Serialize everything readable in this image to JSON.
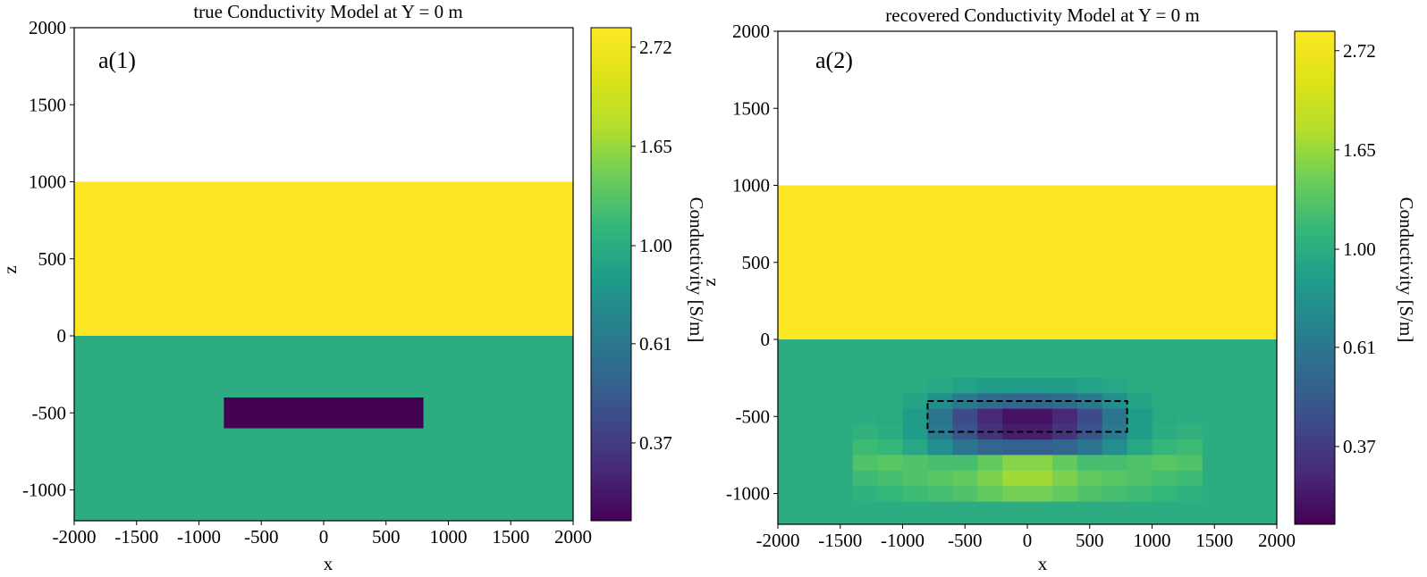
{
  "chart_data": [
    {
      "type": "heatmap",
      "title": "true Conductivity Model at Y = 0 m",
      "xlabel": "x",
      "ylabel": "z",
      "panel_label": "a(1)",
      "xlim": [
        -2000,
        2000
      ],
      "ylim": [
        -1200,
        2000
      ],
      "xticks": [
        "-2000",
        "-1500",
        "-1000",
        "-500",
        "0",
        "500",
        "1000",
        "1500",
        "2000"
      ],
      "yticks": [
        "-1000",
        "-500",
        "0",
        "500",
        "1000",
        "1500",
        "2000"
      ],
      "regions": [
        {
          "name": "air",
          "x": [
            -2000,
            2000
          ],
          "z": [
            1000,
            2000
          ],
          "value": null
        },
        {
          "name": "upper layer",
          "x": [
            -2000,
            2000
          ],
          "z": [
            0,
            1000
          ],
          "value": 3.0
        },
        {
          "name": "background",
          "x": [
            -2000,
            2000
          ],
          "z": [
            -1200,
            0
          ],
          "value": 1.0
        },
        {
          "name": "block",
          "x": [
            -800,
            800
          ],
          "z": [
            -600,
            -400
          ],
          "value": 0.25
        }
      ],
      "colorbar": {
        "label": "Conductivity [S/m]",
        "scale": "log",
        "range": [
          0.25,
          3.0
        ],
        "ticks": [
          "0.37",
          "0.61",
          "1.00",
          "1.65",
          "2.72"
        ]
      }
    },
    {
      "type": "heatmap",
      "title": "recovered Conductivity Model at Y = 0 m",
      "xlabel": "x",
      "ylabel": "z",
      "panel_label": "a(2)",
      "xlim": [
        -2000,
        2000
      ],
      "ylim": [
        -1200,
        2000
      ],
      "xticks": [
        "-2000",
        "-1500",
        "-1000",
        "-500",
        "0",
        "500",
        "1000",
        "1500",
        "2000"
      ],
      "yticks": [
        "-1000",
        "-500",
        "0",
        "500",
        "1000",
        "1500",
        "2000"
      ],
      "regions": [
        {
          "name": "air",
          "x": [
            -2000,
            2000
          ],
          "z": [
            1000,
            2000
          ],
          "value": null
        },
        {
          "name": "upper layer",
          "x": [
            -2000,
            2000
          ],
          "z": [
            0,
            1000
          ],
          "value": 3.0
        },
        {
          "name": "background",
          "x": [
            -2000,
            2000
          ],
          "z": [
            -1200,
            0
          ],
          "value": 1.0
        }
      ],
      "recovered_cells": {
        "x_centers": [
          -1300,
          -1100,
          -900,
          -700,
          -500,
          -300,
          -100,
          100,
          300,
          500,
          700,
          900,
          1100,
          1300
        ],
        "z_centers": [
          -300,
          -400,
          -500,
          -600,
          -700,
          -800,
          -900,
          -1000
        ],
        "values": [
          [
            1.0,
            1.0,
            1.0,
            0.95,
            0.9,
            0.85,
            0.85,
            0.85,
            0.85,
            0.9,
            0.95,
            1.0,
            1.0,
            1.0
          ],
          [
            1.0,
            1.0,
            0.92,
            0.75,
            0.62,
            0.55,
            0.52,
            0.52,
            0.55,
            0.62,
            0.75,
            0.92,
            1.0,
            1.0
          ],
          [
            1.0,
            0.98,
            0.85,
            0.6,
            0.42,
            0.32,
            0.28,
            0.28,
            0.32,
            0.42,
            0.6,
            0.85,
            0.98,
            1.0
          ],
          [
            1.05,
            1.0,
            0.85,
            0.62,
            0.45,
            0.35,
            0.3,
            0.3,
            0.35,
            0.45,
            0.62,
            0.85,
            1.0,
            1.05
          ],
          [
            1.15,
            1.1,
            0.95,
            0.75,
            0.6,
            0.52,
            0.5,
            0.5,
            0.52,
            0.6,
            0.75,
            0.95,
            1.1,
            1.15
          ],
          [
            1.25,
            1.3,
            1.25,
            1.2,
            1.2,
            1.35,
            1.55,
            1.55,
            1.35,
            1.2,
            1.2,
            1.25,
            1.3,
            1.25
          ],
          [
            1.15,
            1.2,
            1.25,
            1.3,
            1.35,
            1.5,
            1.7,
            1.7,
            1.5,
            1.35,
            1.3,
            1.25,
            1.2,
            1.15
          ],
          [
            1.05,
            1.1,
            1.15,
            1.2,
            1.25,
            1.35,
            1.45,
            1.45,
            1.35,
            1.25,
            1.2,
            1.15,
            1.1,
            1.05
          ]
        ]
      },
      "true_block_outline": {
        "x": [
          -800,
          800
        ],
        "z": [
          -600,
          -400
        ],
        "style": "dashed"
      },
      "colorbar": {
        "label": "Conductivity [S/m]",
        "scale": "log",
        "range": [
          0.25,
          3.0
        ],
        "ticks": [
          "0.37",
          "0.61",
          "1.00",
          "1.65",
          "2.72"
        ]
      }
    }
  ]
}
